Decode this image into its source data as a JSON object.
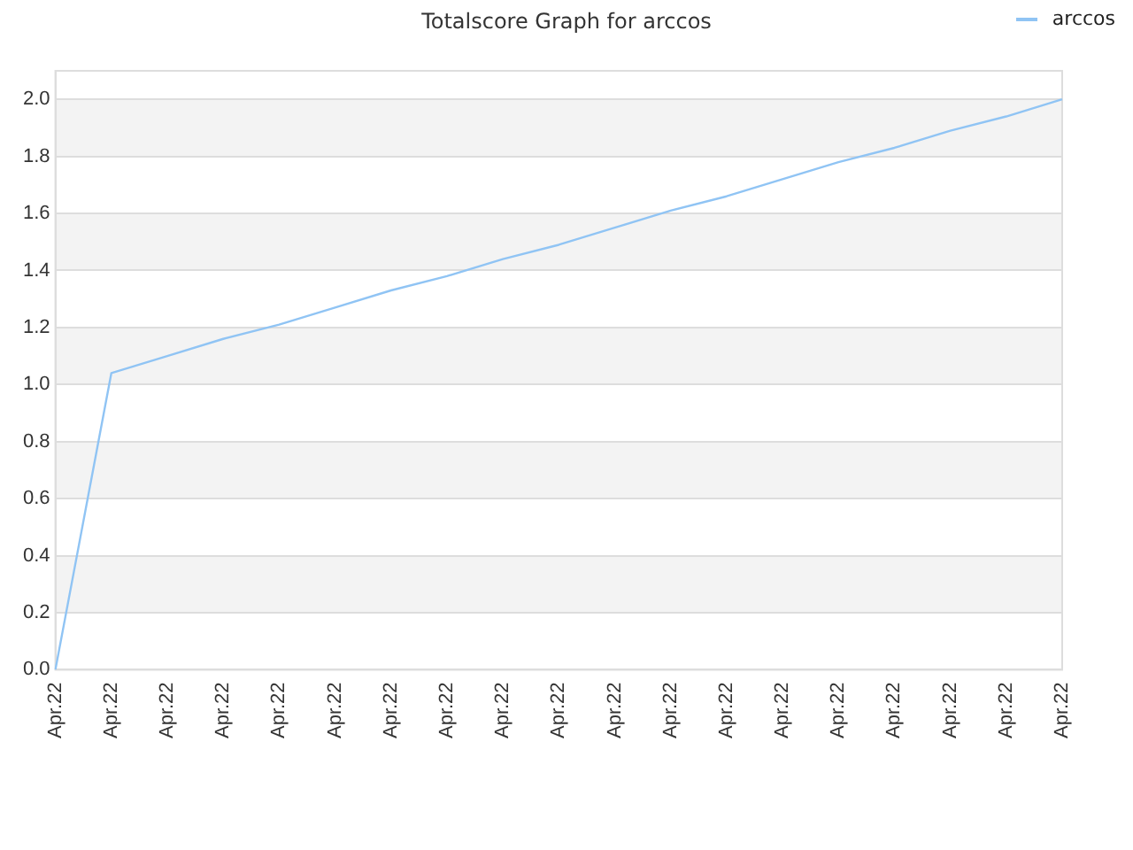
{
  "chart_data": {
    "type": "line",
    "title": "Totalscore Graph for arccos",
    "categories": [
      "Apr.22",
      "Apr.22",
      "Apr.22",
      "Apr.22",
      "Apr.22",
      "Apr.22",
      "Apr.22",
      "Apr.22",
      "Apr.22",
      "Apr.22",
      "Apr.22",
      "Apr.22",
      "Apr.22",
      "Apr.22",
      "Apr.22",
      "Apr.22",
      "Apr.22",
      "Apr.22",
      "Apr.22"
    ],
    "series": [
      {
        "name": "arccos",
        "color": "#90c4f4",
        "values": [
          0,
          1.04,
          1.1,
          1.16,
          1.21,
          1.27,
          1.33,
          1.38,
          1.44,
          1.49,
          1.55,
          1.61,
          1.66,
          1.72,
          1.78,
          1.83,
          1.89,
          1.94,
          2.0
        ]
      }
    ],
    "ylim": [
      0,
      2.1
    ],
    "yticks": [
      {
        "value": 0,
        "label": "0.0"
      },
      {
        "value": 0.2,
        "label": "0.2"
      },
      {
        "value": 0.4,
        "label": "0.4"
      },
      {
        "value": 0.6,
        "label": "0.6"
      },
      {
        "value": 0.8,
        "label": "0.8"
      },
      {
        "value": 1.0,
        "label": "1.0"
      },
      {
        "value": 1.2,
        "label": "1.2"
      },
      {
        "value": 1.4,
        "label": "1.4"
      },
      {
        "value": 1.6,
        "label": "1.6"
      },
      {
        "value": 1.8,
        "label": "1.8"
      },
      {
        "value": 2.0,
        "label": "2.0"
      }
    ],
    "grid": "y",
    "legend": "top right",
    "marker": "none",
    "line_style": "solid"
  }
}
